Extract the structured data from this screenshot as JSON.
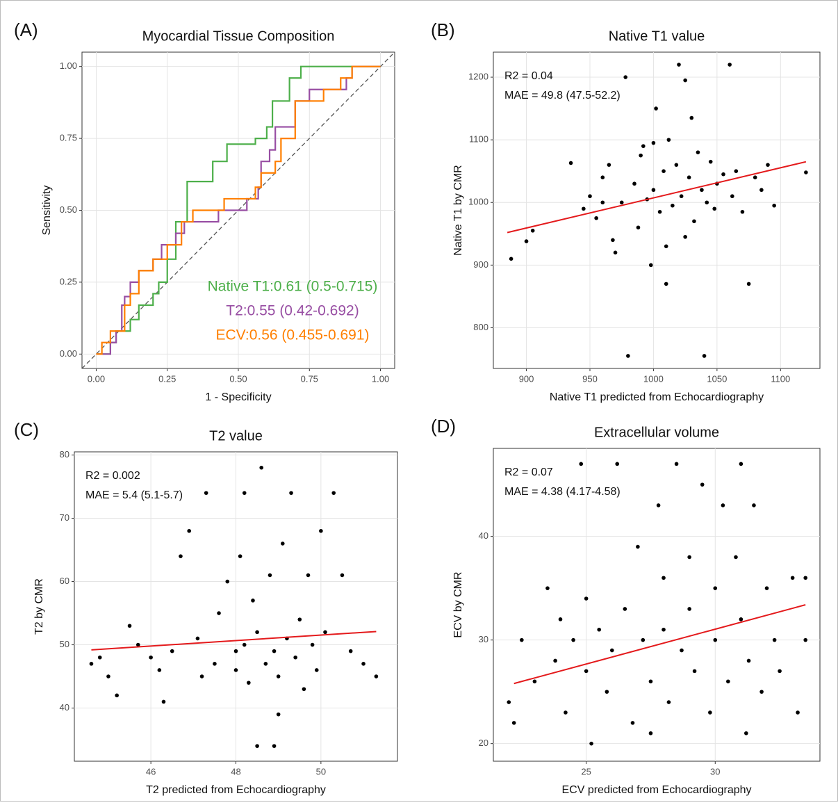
{
  "chart_data": [
    {
      "type": "line",
      "panel_label": "(A)",
      "title": "Myocardial Tissue Composition",
      "x_label": "1 - Specificity",
      "y_label": "Sensitivity",
      "xlim": [
        -0.05,
        1.05
      ],
      "ylim": [
        -0.05,
        1.05
      ],
      "xticks": [
        {
          "value": 0,
          "label": "0.00"
        },
        {
          "value": 0.25,
          "label": "0.25"
        },
        {
          "value": 0.5,
          "label": "0.50"
        },
        {
          "value": 0.75,
          "label": "0.75"
        },
        {
          "value": 1,
          "label": "1.00"
        }
      ],
      "yticks": [
        {
          "value": 0,
          "label": "0.00"
        },
        {
          "value": 0.25,
          "label": "0.25"
        },
        {
          "value": 0.5,
          "label": "0.50"
        },
        {
          "value": 0.75,
          "label": "0.75"
        },
        {
          "value": 1,
          "label": "1.00"
        }
      ],
      "grid": true,
      "series": [
        {
          "name": "Native T1:0.61 (0.5-0.715)",
          "color": "#4daf4a",
          "x": [
            0,
            0.05,
            0.05,
            0.07,
            0.07,
            0.12,
            0.12,
            0.15,
            0.15,
            0.2,
            0.2,
            0.22,
            0.22,
            0.25,
            0.25,
            0.28,
            0.28,
            0.32,
            0.32,
            0.41,
            0.41,
            0.46,
            0.46,
            0.56,
            0.56,
            0.6,
            0.6,
            0.62,
            0.62,
            0.68,
            0.68,
            0.72,
            0.72,
            1
          ],
          "values": [
            0,
            0,
            0.04,
            0.04,
            0.08,
            0.08,
            0.12,
            0.12,
            0.17,
            0.17,
            0.21,
            0.21,
            0.25,
            0.25,
            0.33,
            0.33,
            0.46,
            0.46,
            0.6,
            0.6,
            0.67,
            0.67,
            0.73,
            0.73,
            0.75,
            0.75,
            0.79,
            0.79,
            0.88,
            0.88,
            0.96,
            0.96,
            1,
            1
          ]
        },
        {
          "name": "T2:0.55 (0.42-0.692)",
          "color": "#984ea3",
          "x": [
            0,
            0.05,
            0.05,
            0.07,
            0.07,
            0.09,
            0.09,
            0.1,
            0.1,
            0.12,
            0.12,
            0.15,
            0.15,
            0.2,
            0.2,
            0.23,
            0.23,
            0.28,
            0.28,
            0.31,
            0.31,
            0.43,
            0.43,
            0.53,
            0.53,
            0.57,
            0.57,
            0.58,
            0.58,
            0.61,
            0.61,
            0.63,
            0.63,
            0.7,
            0.7,
            0.75,
            0.75,
            0.88,
            0.88,
            0.9,
            0.9,
            1
          ],
          "values": [
            0,
            0,
            0.04,
            0.04,
            0.08,
            0.08,
            0.17,
            0.17,
            0.2,
            0.2,
            0.25,
            0.25,
            0.29,
            0.29,
            0.33,
            0.33,
            0.38,
            0.38,
            0.42,
            0.42,
            0.46,
            0.46,
            0.5,
            0.5,
            0.54,
            0.54,
            0.58,
            0.58,
            0.67,
            0.67,
            0.71,
            0.71,
            0.79,
            0.79,
            0.88,
            0.88,
            0.92,
            0.92,
            0.96,
            0.96,
            1,
            1
          ]
        },
        {
          "name": "ECV:0.56 (0.455-0.691)",
          "color": "#ff7f00",
          "x": [
            0,
            0.02,
            0.02,
            0.05,
            0.05,
            0.1,
            0.1,
            0.12,
            0.12,
            0.15,
            0.15,
            0.2,
            0.2,
            0.25,
            0.25,
            0.3,
            0.3,
            0.34,
            0.34,
            0.45,
            0.45,
            0.56,
            0.56,
            0.58,
            0.58,
            0.63,
            0.63,
            0.65,
            0.65,
            0.7,
            0.7,
            0.8,
            0.8,
            0.86,
            0.86,
            0.9,
            0.9,
            1
          ],
          "values": [
            0,
            0,
            0.04,
            0.04,
            0.08,
            0.08,
            0.17,
            0.17,
            0.21,
            0.21,
            0.29,
            0.29,
            0.33,
            0.33,
            0.38,
            0.38,
            0.46,
            0.46,
            0.5,
            0.5,
            0.54,
            0.54,
            0.58,
            0.58,
            0.63,
            0.63,
            0.67,
            0.67,
            0.75,
            0.75,
            0.88,
            0.88,
            0.92,
            0.92,
            0.96,
            0.96,
            1,
            1
          ]
        }
      ]
    },
    {
      "type": "scatter",
      "panel_label": "(B)",
      "title": "Native T1 value",
      "x_label": "Native T1 predicted from Echocardiography",
      "y_label": "Native T1 by CMR",
      "xlim": [
        874,
        1131
      ],
      "ylim": [
        735,
        1240
      ],
      "xticks": [
        900,
        950,
        1000,
        1050,
        1100
      ],
      "yticks": [
        800,
        900,
        1000,
        1100,
        1200
      ],
      "grid": true,
      "annotations": [
        "R2 = 0.04",
        "MAE = 49.8 (47.5-52.2)"
      ],
      "color": "#000000",
      "x": [
        888,
        900,
        905,
        935,
        945,
        950,
        955,
        960,
        965,
        968,
        970,
        975,
        978,
        980,
        985,
        988,
        990,
        992,
        995,
        998,
        1000,
        1002,
        1005,
        1008,
        1010,
        1012,
        1015,
        1018,
        1020,
        1022,
        1025,
        1028,
        1030,
        1032,
        1035,
        1038,
        1040,
        1042,
        1045,
        1048,
        1050,
        1055,
        1060,
        1062,
        1065,
        1070,
        1075,
        1080,
        1085,
        1090,
        1095,
        1120,
        1010,
        1000,
        960,
        1025
      ],
      "values": [
        910,
        938,
        955,
        1063,
        990,
        1010,
        975,
        1040,
        1060,
        940,
        920,
        1000,
        1200,
        755,
        1030,
        960,
        1075,
        1090,
        1005,
        900,
        1020,
        1150,
        985,
        1050,
        930,
        1100,
        995,
        1060,
        1220,
        1010,
        945,
        1040,
        1135,
        970,
        1080,
        1020,
        755,
        1000,
        1065,
        990,
        1030,
        1045,
        1220,
        1010,
        1050,
        985,
        870,
        1040,
        1020,
        1060,
        995,
        1048,
        870,
        1095,
        1000,
        1195
      ],
      "fit": {
        "color": "#e41a1c",
        "x": [
          885,
          1120
        ],
        "values": [
          952,
          1065
        ]
      }
    },
    {
      "type": "scatter",
      "panel_label": "(C)",
      "title": "T2 value",
      "x_label": "T2 predicted from Echocardiography",
      "y_label": "T2 by CMR",
      "xlim": [
        44.2,
        51.8
      ],
      "ylim": [
        31.6,
        80.5
      ],
      "xticks": [
        46,
        48,
        50
      ],
      "yticks": [
        40,
        50,
        60,
        70,
        80
      ],
      "grid": true,
      "annotations": [
        "R2 = 0.002",
        "MAE = 5.4 (5.1-5.7)"
      ],
      "color": "#000000",
      "x": [
        44.6,
        44.8,
        45,
        45.2,
        45.5,
        45.7,
        46,
        46.2,
        46.3,
        46.5,
        46.7,
        46.9,
        47.1,
        47.3,
        47.5,
        47.6,
        47.8,
        48,
        48,
        48.1,
        48.2,
        48.3,
        48.4,
        48.5,
        48.5,
        48.6,
        48.7,
        48.8,
        48.9,
        49,
        49,
        49.1,
        49.2,
        49.3,
        49.4,
        49.5,
        49.6,
        49.7,
        49.8,
        49.9,
        50,
        50.1,
        50.3,
        50.5,
        50.7,
        51,
        51.3,
        48.9,
        47.2,
        48.2
      ],
      "values": [
        47,
        48,
        45,
        42,
        53,
        50,
        48,
        46,
        41,
        49,
        64,
        68,
        51,
        74,
        47,
        55,
        60,
        49,
        46,
        64,
        74,
        44,
        57,
        52,
        34,
        78,
        47,
        61,
        49,
        45,
        39,
        66,
        51,
        74,
        48,
        54,
        43,
        61,
        50,
        46,
        68,
        52,
        74,
        61,
        49,
        47,
        45,
        34,
        45,
        50
      ],
      "fit": {
        "color": "#e41a1c",
        "x": [
          44.6,
          51.3
        ],
        "values": [
          49.2,
          52.1
        ]
      }
    },
    {
      "type": "scatter",
      "panel_label": "(D)",
      "title": "Extracellular volume",
      "x_label": "ECV predicted from Echocardiography",
      "y_label": "ECV by CMR",
      "xlim": [
        21.4,
        34.06
      ],
      "ylim": [
        18.3,
        48.5
      ],
      "xticks": [
        25,
        30
      ],
      "yticks": [
        20,
        30,
        40
      ],
      "grid": true,
      "annotations": [
        "R2 = 0.07",
        "MAE = 4.38 (4.17-4.58)"
      ],
      "color": "#000000",
      "x": [
        22,
        22.2,
        22.5,
        23,
        23.5,
        23.8,
        24,
        24.2,
        24.5,
        24.8,
        25,
        25,
        25.2,
        25.5,
        25.8,
        26,
        26.2,
        26.5,
        26.8,
        27,
        27.2,
        27.5,
        27.8,
        28,
        28,
        28.2,
        28.5,
        28.7,
        29,
        29,
        29.2,
        29.5,
        29.8,
        30,
        30,
        30.3,
        30.5,
        30.8,
        31,
        31,
        31.3,
        31.5,
        31.8,
        32,
        32.3,
        32.5,
        33,
        33.2,
        33.5,
        33.5,
        31.2,
        27.5
      ],
      "values": [
        24,
        22,
        30,
        26,
        35,
        28,
        32,
        23,
        30,
        47,
        27,
        34,
        20,
        31,
        25,
        29,
        47,
        33,
        22,
        39,
        30,
        26,
        43,
        36,
        31,
        24,
        47,
        29,
        38,
        33,
        27,
        45,
        23,
        35,
        30,
        43,
        26,
        38,
        32,
        47,
        28,
        43,
        25,
        35,
        30,
        27,
        36,
        23,
        30,
        36,
        21,
        21
      ],
      "fit": {
        "color": "#e41a1c",
        "x": [
          22.2,
          33.5
        ],
        "values": [
          25.8,
          33.4
        ]
      }
    }
  ]
}
